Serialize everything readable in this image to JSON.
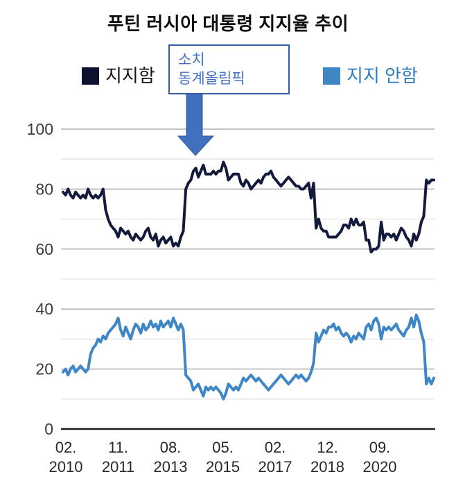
{
  "colors": {
    "approve_line": "#141a3c",
    "approve_swatch": "#0d1230",
    "disapprove_line": "#3e86c6",
    "disapprove_text": "#2b7dc0",
    "annotation_blue": "#4472c4",
    "annotation_border": "#2f5fa7",
    "arrow_fill": "#4070be",
    "grid_major": "#b0b0b0",
    "grid_minor": "#dedede",
    "axis_line": "#1f1f1f"
  },
  "chart_data": {
    "type": "line",
    "title": "푸틴 러시아 대통령 지지율 추이",
    "x_start": "2010-02",
    "x_interval": "monthly",
    "x_end": "2022-06",
    "x_tick_labels": [
      {
        "month": "02.",
        "year": "2010"
      },
      {
        "month": "11.",
        "year": "2011"
      },
      {
        "month": "08.",
        "year": "2013"
      },
      {
        "month": "05.",
        "year": "2015"
      },
      {
        "month": "02.",
        "year": "2017"
      },
      {
        "month": "12.",
        "year": "2018"
      },
      {
        "month": "09.",
        "year": "2020"
      }
    ],
    "y_ticks": [
      0,
      20,
      40,
      60,
      80,
      100
    ],
    "ylim": [
      0,
      100
    ],
    "grid": "horizontal every 10, majors at labeled ticks",
    "legend_position": "top",
    "annotation": {
      "line1": "소치",
      "line2": "동계올림픽"
    },
    "series": [
      {
        "name": "지지함",
        "color": "#141a3c",
        "values": [
          79,
          78,
          80,
          78,
          77,
          79,
          78,
          77,
          78,
          77,
          80,
          78,
          77,
          78,
          77,
          78,
          80,
          73,
          70,
          68,
          67,
          66,
          64,
          67,
          66,
          65,
          66,
          64,
          63,
          65,
          64,
          63,
          64,
          66,
          67,
          64,
          63,
          65,
          61,
          63,
          64,
          62,
          63,
          64,
          61,
          62,
          61,
          64,
          66,
          80,
          82,
          83,
          86,
          87,
          84,
          86,
          88,
          85,
          85,
          85,
          86,
          85,
          86,
          86,
          89,
          87,
          83,
          84,
          85,
          85,
          85,
          82,
          81,
          83,
          82,
          80,
          81,
          82,
          83,
          82,
          84,
          85,
          85,
          86,
          84,
          83,
          82,
          81,
          82,
          83,
          84,
          83,
          82,
          81,
          81,
          80,
          80,
          81,
          82,
          77,
          82,
          67,
          70,
          67,
          66,
          66,
          64,
          64,
          64,
          64,
          65,
          66,
          68,
          68,
          67,
          70,
          68,
          70,
          68,
          68,
          69,
          63,
          63,
          59,
          60,
          60,
          61,
          69,
          63,
          65,
          65,
          64,
          65,
          63,
          65,
          67,
          66,
          64,
          63,
          61,
          65,
          63,
          65,
          69,
          71,
          83,
          82,
          83,
          83
        ]
      },
      {
        "name": "지지 안함",
        "color": "#3e86c6",
        "values": [
          19,
          20,
          18,
          20,
          21,
          19,
          20,
          21,
          20,
          19,
          20,
          25,
          27,
          28,
          30,
          29,
          31,
          30,
          32,
          33,
          34,
          35,
          37,
          33,
          31,
          34,
          32,
          30,
          33,
          35,
          34,
          32,
          35,
          33,
          34,
          36,
          34,
          35,
          33,
          36,
          34,
          35,
          36,
          34,
          37,
          35,
          33,
          35,
          33,
          18,
          17,
          16,
          13,
          14,
          15,
          13,
          11,
          14,
          13,
          14,
          13,
          14,
          13,
          12,
          10,
          12,
          15,
          14,
          13,
          14,
          13,
          15,
          17,
          16,
          17,
          18,
          17,
          16,
          17,
          16,
          15,
          14,
          13,
          14,
          15,
          16,
          17,
          18,
          17,
          16,
          15,
          16,
          17,
          18,
          17,
          18,
          17,
          16,
          17,
          19,
          22,
          32,
          29,
          31,
          33,
          32,
          34,
          34,
          35,
          33,
          34,
          32,
          31,
          32,
          31,
          29,
          31,
          30,
          32,
          31,
          30,
          34,
          35,
          33,
          36,
          37,
          35,
          30,
          34,
          33,
          34,
          33,
          34,
          35,
          33,
          32,
          31,
          33,
          34,
          37,
          34,
          38,
          36,
          32,
          29,
          15,
          17,
          15,
          17
        ]
      }
    ]
  }
}
